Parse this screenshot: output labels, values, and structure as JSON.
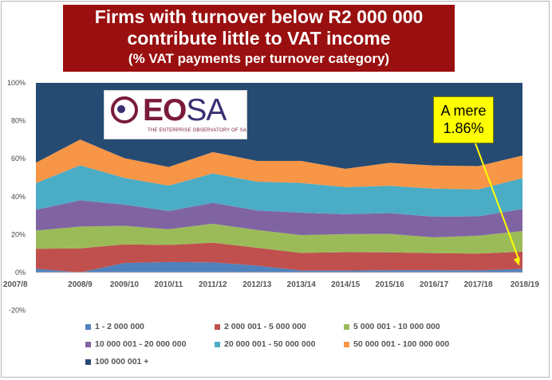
{
  "title": {
    "line1": "Firms with turnover below R2 000 000",
    "line2": "contribute little to VAT income",
    "line3": "(% VAT payments per turnover category)"
  },
  "logo": {
    "primary": "EO",
    "secondary": "SA",
    "tagline": "THE ENTERPRISE OBSERVATORY OF SA"
  },
  "annotation": {
    "line1": "A mere",
    "line2": "1.86%"
  },
  "colors": {
    "s1": "#4f81bd",
    "s2": "#c0504d",
    "s3": "#9bbb59",
    "s4": "#8064a2",
    "s5": "#4bacc6",
    "s6": "#f79646",
    "s7": "#264b73",
    "arrow": "#ffff00",
    "title_bg": "#9a0f0f"
  },
  "chart_data": {
    "type": "area",
    "stacked": true,
    "x": [
      "2007/8",
      "2008/9",
      "2009/10",
      "2010/11",
      "2011/12",
      "2012/13",
      "2013/14",
      "2014/15",
      "2015/16",
      "2016/17",
      "2017/18",
      "2018/19"
    ],
    "y_ticks": [
      "100%",
      "80%",
      "60%",
      "40%",
      "20%",
      "0%",
      "-20%"
    ],
    "ylim": [
      -20,
      100
    ],
    "grid": false,
    "legend_position": "bottom",
    "series": [
      {
        "name": "1 - 2 000 000",
        "values": [
          2,
          0,
          5,
          5.5,
          5.3,
          3.6,
          1,
          1,
          1.2,
          1.2,
          1.1,
          1.86
        ]
      },
      {
        "name": "2 000 001 - 5 000 000",
        "values": [
          10.5,
          12.7,
          9.8,
          9,
          10.4,
          9.4,
          9.3,
          9.7,
          9.4,
          9,
          8.9,
          9.1
        ]
      },
      {
        "name": "5 000 001 - 10 000 000",
        "values": [
          9.6,
          11.5,
          9.8,
          8.3,
          10,
          9.4,
          9.4,
          9.5,
          9.7,
          8.3,
          9.4,
          10.9
        ]
      },
      {
        "name": "10 000 001 - 20 000 000",
        "values": [
          11,
          13.8,
          11.2,
          9.6,
          11,
          10.3,
          11.8,
          10.5,
          11,
          10.9,
          10.2,
          11.6
        ]
      },
      {
        "name": "20 000 001 - 50 000 000",
        "values": [
          14,
          18.5,
          14.1,
          13.4,
          15.5,
          15.2,
          15.7,
          14.3,
          14.4,
          14.8,
          14.2,
          16.3
        ]
      },
      {
        "name": "50 000 001 - 100 000 000",
        "values": [
          10.8,
          13.6,
          10.4,
          9.8,
          11.3,
          10.9,
          11.6,
          9.7,
          12.1,
          12.2,
          12.3,
          11.9
        ]
      },
      {
        "name": "100 000 001 +",
        "values": [
          42.1,
          29.9,
          39.7,
          44.4,
          36.5,
          41.2,
          41.2,
          45.3,
          42.2,
          43.6,
          43.9,
          38.34
        ]
      }
    ]
  },
  "legend": {
    "items": [
      {
        "label": "1 - 2 000 000"
      },
      {
        "label": "2 000 001 - 5 000 000"
      },
      {
        "label": "5 000 001 - 10 000 000"
      },
      {
        "label": "10 000 001 - 20 000 000"
      },
      {
        "label": "20 000 001 - 50 000 000"
      },
      {
        "label": "50 000 001 - 100 000 000"
      },
      {
        "label": "100 000 001 +"
      }
    ]
  }
}
